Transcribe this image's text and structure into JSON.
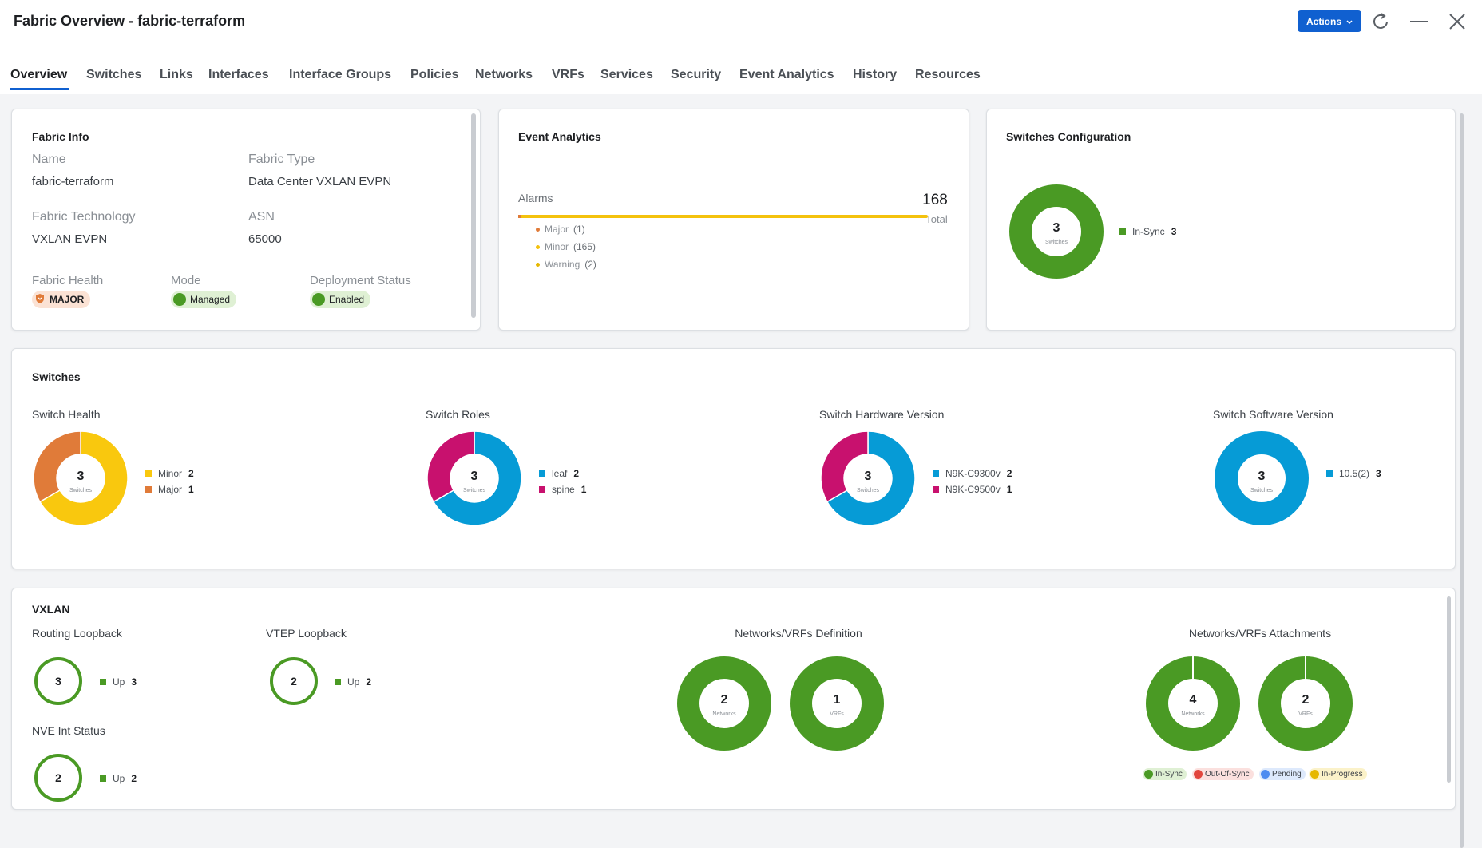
{
  "header": {
    "title": "Fabric Overview - fabric-terraform",
    "actions_label": "Actions"
  },
  "tabs": [
    "Overview",
    "Switches",
    "Links",
    "Interfaces",
    "Interface Groups",
    "Policies",
    "Networks",
    "VRFs",
    "Services",
    "Security",
    "Event Analytics",
    "History",
    "Resources"
  ],
  "fabric_info": {
    "title": "Fabric Info",
    "name_label": "Name",
    "name_value": "fabric-terraform",
    "type_label": "Fabric Type",
    "type_value": "Data Center VXLAN EVPN",
    "tech_label": "Fabric Technology",
    "tech_value": "VXLAN EVPN",
    "asn_label": "ASN",
    "asn_value": "65000",
    "health_label": "Fabric Health",
    "health_value": "MAJOR",
    "mode_label": "Mode",
    "mode_value": "Managed",
    "deploy_label": "Deployment Status",
    "deploy_value": "Enabled"
  },
  "event_analytics": {
    "title": "Event Analytics",
    "alarms_label": "Alarms",
    "total": "168",
    "total_label": "Total",
    "rows": [
      {
        "label": "Major",
        "count": "(1)",
        "color": "#e07b39"
      },
      {
        "label": "Minor",
        "count": "(165)",
        "color": "#f4c20d"
      },
      {
        "label": "Warning",
        "count": "(2)",
        "color": "#e6b800"
      }
    ]
  },
  "switches_config": {
    "title": "Switches Configuration",
    "center": "3",
    "center_sub": "Switches",
    "legend": [
      {
        "label": "In-Sync",
        "value": "3",
        "color": "#4a9a24"
      }
    ]
  },
  "switches": {
    "title": "Switches",
    "charts": [
      {
        "title": "Switch Health",
        "center": "3",
        "center_sub": "Switches",
        "slices": [
          {
            "label": "Minor",
            "value": 2,
            "color": "#f9c80e"
          },
          {
            "label": "Major",
            "value": 1,
            "color": "#e07b39"
          }
        ]
      },
      {
        "title": "Switch Roles",
        "center": "3",
        "center_sub": "Switches",
        "slices": [
          {
            "label": "leaf",
            "value": 2,
            "color": "#069bd6"
          },
          {
            "label": "spine",
            "value": 1,
            "color": "#c8116e"
          }
        ]
      },
      {
        "title": "Switch Hardware Version",
        "center": "3",
        "center_sub": "Switches",
        "slices": [
          {
            "label": "N9K-C9300v",
            "value": 2,
            "color": "#069bd6"
          },
          {
            "label": "N9K-C9500v",
            "value": 1,
            "color": "#c8116e"
          }
        ]
      },
      {
        "title": "Switch Software Version",
        "center": "3",
        "center_sub": "Switches",
        "slices": [
          {
            "label": "10.5(2)",
            "value": 3,
            "color": "#069bd6"
          }
        ]
      }
    ]
  },
  "vxlan": {
    "title": "VXLAN",
    "routing_loopback": {
      "title": "Routing Loopback",
      "center": "3",
      "legend_label": "Up",
      "legend_value": "3"
    },
    "vtep_loopback": {
      "title": "VTEP Loopback",
      "center": "2",
      "legend_label": "Up",
      "legend_value": "2"
    },
    "nve_status": {
      "title": "NVE Int Status",
      "center": "2",
      "legend_label": "Up",
      "legend_value": "2"
    },
    "definition": {
      "title": "Networks/VRFs Definition",
      "donuts": [
        {
          "center": "2",
          "sub": "Networks"
        },
        {
          "center": "1",
          "sub": "VRFs"
        }
      ]
    },
    "attachments": {
      "title": "Networks/VRFs Attachments",
      "donuts": [
        {
          "center": "4",
          "sub": "Networks"
        },
        {
          "center": "2",
          "sub": "VRFs"
        }
      ],
      "legend": [
        {
          "label": "In-Sync",
          "color": "#4a9a24",
          "bg": "#dff0d4"
        },
        {
          "label": "Out-Of-Sync",
          "color": "#e2463d",
          "bg": "#fbe0de"
        },
        {
          "label": "Pending",
          "color": "#4e8cf0",
          "bg": "#dde9fc"
        },
        {
          "label": "In-Progress",
          "color": "#e6b800",
          "bg": "#fbf2c9"
        }
      ]
    }
  },
  "colors": {
    "accent": "#1060d0",
    "green": "#4a9a24",
    "green_light": "#dff0d4",
    "major_bg": "#fbe2d4"
  }
}
